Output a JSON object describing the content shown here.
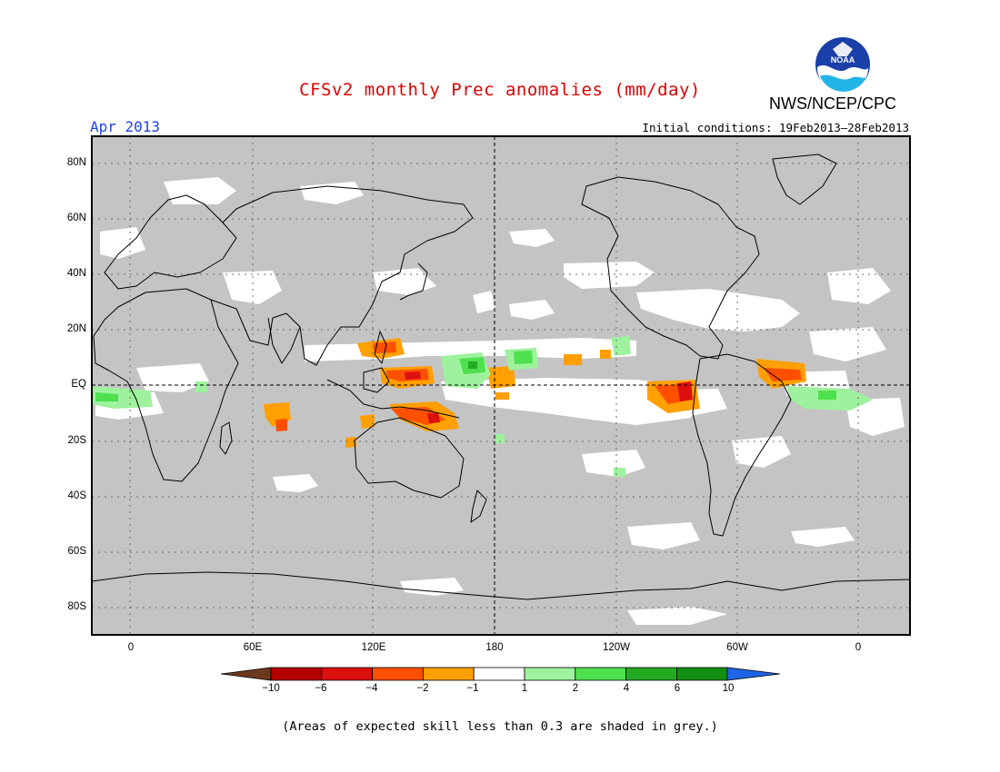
{
  "header": {
    "title": "CFSv2 monthly Prec anomalies (mm/day)",
    "agency": "NWS/NCEP/CPC",
    "month": "Apr 2013",
    "initial_conditions": "Initial conditions: 19Feb2013–28Feb2013",
    "logo_text": "NOAA"
  },
  "axes": {
    "lat_labels": [
      "80N",
      "60N",
      "40N",
      "20N",
      "EQ",
      "20S",
      "40S",
      "60S",
      "80S"
    ],
    "lon_labels": [
      "0",
      "60E",
      "120E",
      "180",
      "120W",
      "60W",
      "0"
    ]
  },
  "colorbar": {
    "labels": [
      "−10",
      "−6",
      "−4",
      "−2",
      "−1",
      "1",
      "2",
      "4",
      "6",
      "10"
    ],
    "colors": [
      "#6b3a1e",
      "#b50000",
      "#dd1010",
      "#ff5000",
      "#ff9f00",
      "#ffffff",
      "#9ef29e",
      "#4fe04f",
      "#22aa22",
      "#118e11",
      "#1e64e6"
    ]
  },
  "map": {
    "grey_color": "#c4c4c4",
    "land_color": "#c4c4c4",
    "coast_color": "#000000"
  },
  "footnote": "(Areas of expected skill less than 0.3 are shaded in grey.)"
}
